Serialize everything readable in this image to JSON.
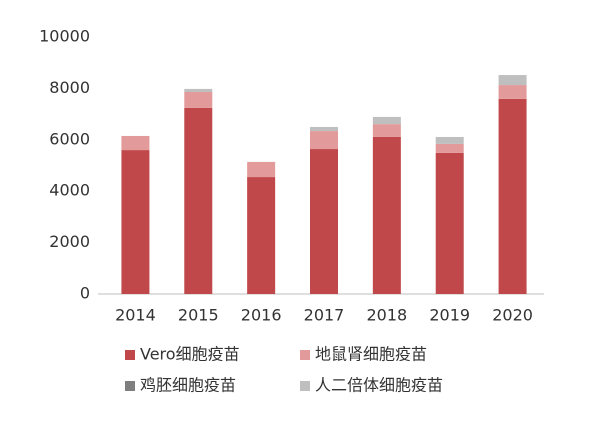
{
  "chart_data": {
    "type": "stacked_bar",
    "categories": [
      "2014",
      "2015",
      "2016",
      "2017",
      "2018",
      "2019",
      "2020"
    ],
    "series": [
      {
        "name": "Vero细胞疫苗",
        "color": "#c0474a",
        "values": [
          5600,
          7240,
          4550,
          5640,
          6110,
          5490,
          7590
        ]
      },
      {
        "name": "地鼠肾细胞疫苗",
        "color": "#e39a9a",
        "values": [
          550,
          620,
          590,
          700,
          500,
          350,
          540
        ]
      },
      {
        "name": "鸡胚细胞疫苗",
        "color": "#7f7f7f",
        "values": [
          0,
          0,
          0,
          0,
          0,
          0,
          0
        ]
      },
      {
        "name": "人二倍体细胞疫苗",
        "color": "#bfbfbf",
        "values": [
          0,
          120,
          0,
          160,
          280,
          270,
          390
        ]
      }
    ],
    "ylim": [
      0,
      10000
    ],
    "yticks": [
      0,
      2000,
      4000,
      6000,
      8000,
      10000
    ],
    "grid": false
  }
}
